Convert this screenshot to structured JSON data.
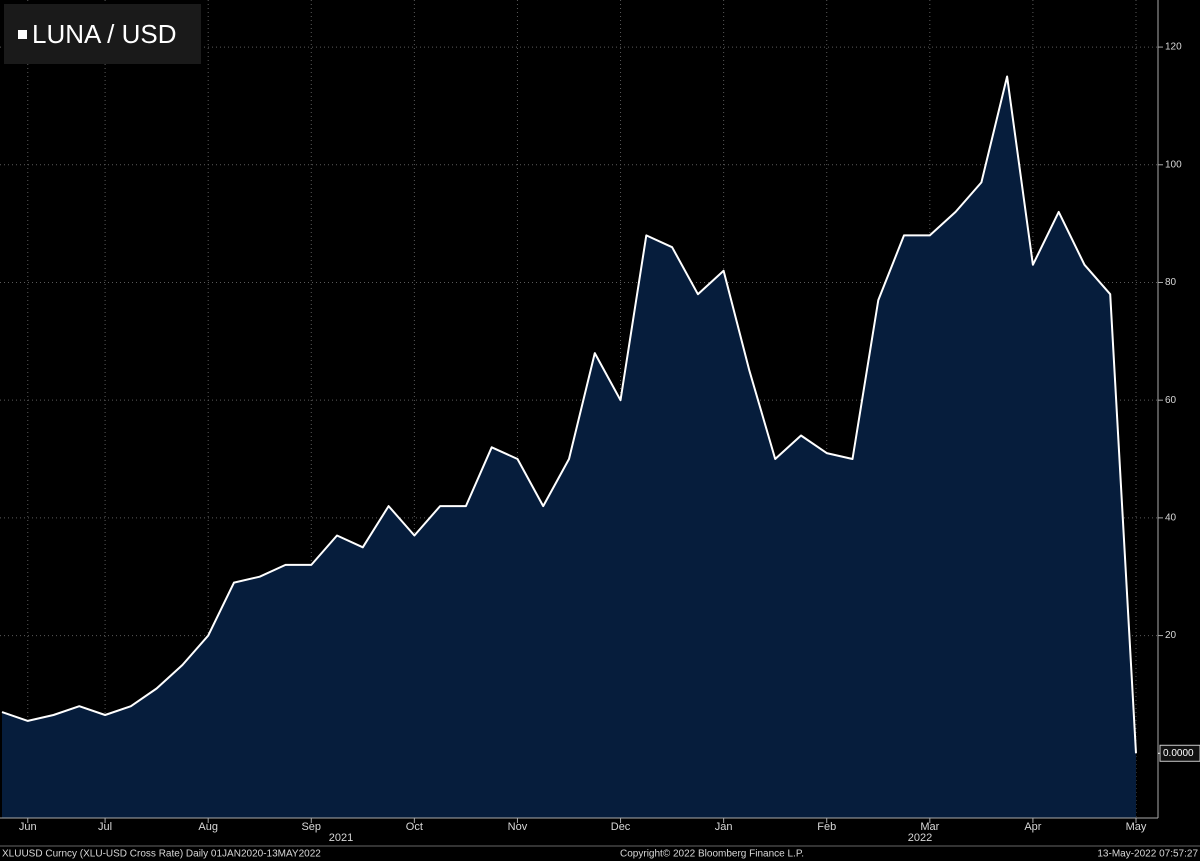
{
  "chart_data": {
    "type": "area",
    "title": "LUNA / USD",
    "categories": [
      null,
      "Jun",
      null,
      null,
      "Jul",
      null,
      null,
      null,
      "Aug",
      null,
      null,
      null,
      "Sep",
      null,
      null,
      null,
      "Oct",
      null,
      null,
      null,
      "Nov",
      null,
      null,
      null,
      "Dec",
      null,
      null,
      null,
      "Jan",
      null,
      null,
      null,
      "Feb",
      null,
      null,
      null,
      "Mar",
      null,
      null,
      null,
      "Apr",
      null,
      null,
      null,
      "May"
    ],
    "values": [
      7,
      5.5,
      6.5,
      8,
      6.5,
      8,
      11,
      15,
      20,
      29,
      30,
      32,
      32,
      37,
      35,
      42,
      37,
      42,
      42,
      52,
      50,
      42,
      50,
      68,
      60,
      88,
      86,
      78,
      82,
      65,
      50,
      54,
      51,
      50,
      77,
      88,
      88,
      92,
      97,
      115,
      83,
      92,
      83,
      78,
      0
    ],
    "years": [
      "2021",
      "2022"
    ],
    "line_color": "#ffffff",
    "fill_color": "#061d3c",
    "ylim": [
      -11,
      128
    ],
    "yticks": [
      20,
      40,
      60,
      80,
      100,
      120
    ],
    "grid": true,
    "last_price": {
      "value": 0,
      "label": "0.0000"
    },
    "footer": {
      "left": "XLUUSD Curncy (XLU-USD Cross Rate)  Daily 01JAN2020-13MAY2022",
      "center": "Copyright© 2022 Bloomberg Finance L.P.",
      "right": "13-May-2022 07:57:27"
    }
  }
}
